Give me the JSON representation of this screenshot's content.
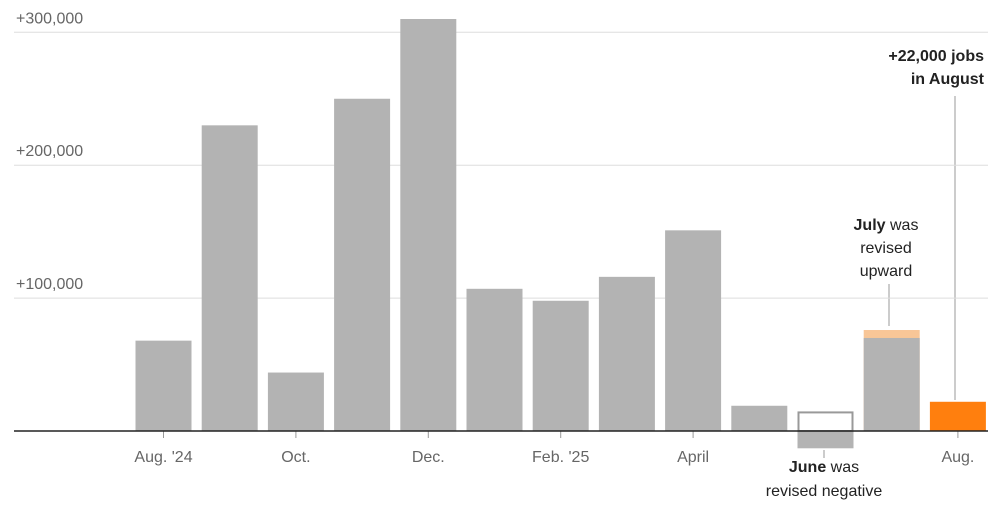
{
  "chart_data": {
    "type": "bar",
    "categories": [
      "Aug. '24",
      null,
      "Oct.",
      null,
      "Dec.",
      null,
      "Feb. '25",
      null,
      "April",
      null,
      null,
      null,
      "Aug."
    ],
    "values": [
      68000,
      230000,
      44000,
      250000,
      310000,
      107000,
      98000,
      116000,
      151000,
      19000,
      -13000,
      76000,
      22000
    ],
    "earlier_values": [
      null,
      null,
      null,
      null,
      null,
      null,
      null,
      null,
      null,
      null,
      14000,
      70000,
      null
    ],
    "colors": [
      "#b3b3b3",
      "#b3b3b3",
      "#b3b3b3",
      "#b3b3b3",
      "#b3b3b3",
      "#b3b3b3",
      "#b3b3b3",
      "#b3b3b3",
      "#b3b3b3",
      "#b3b3b3",
      "#b3b3b3",
      "#f8c697",
      "#ff7f0e"
    ],
    "earlier_color": "#b3b3b3",
    "ylim": [
      -20000,
      310000
    ],
    "yticks": [
      {
        "value": 100000,
        "label": "+100,000"
      },
      {
        "value": 200000,
        "label": "+200,000"
      },
      {
        "value": 300000,
        "label": "+300,000"
      }
    ],
    "grid": true,
    "annotations": {
      "august": {
        "line1": "+22,000 jobs",
        "line2": "in August"
      },
      "july": {
        "bold": "July",
        "rest": "was",
        "line2": "revised",
        "line3": "upward"
      },
      "june": {
        "bold": "June",
        "rest": "was",
        "line2": "revised negative"
      }
    }
  }
}
